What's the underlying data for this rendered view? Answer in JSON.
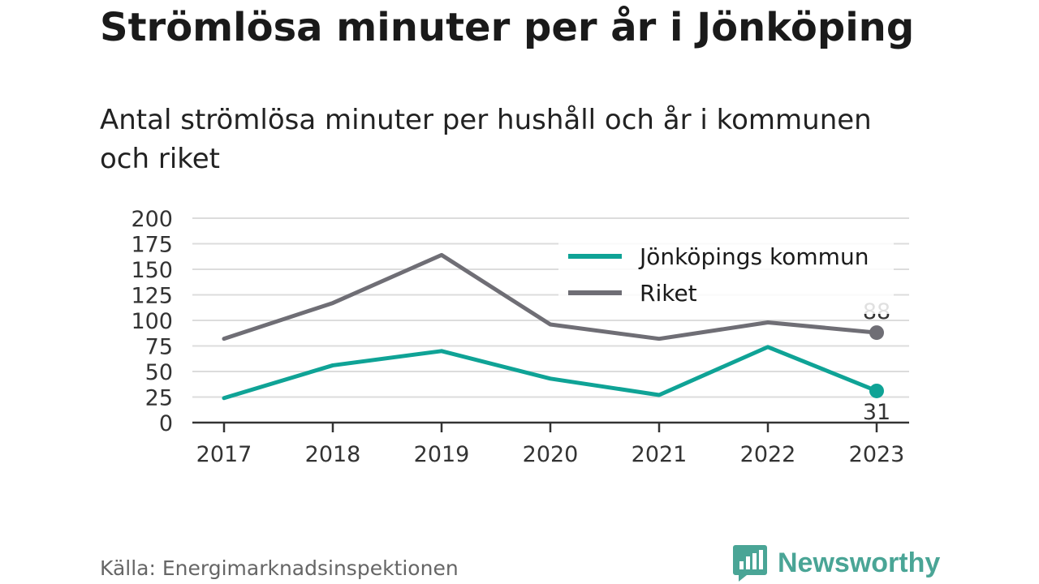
{
  "header": {
    "title": "Strömlösa minuter per år i Jönköping",
    "subtitle": "Antal strömlösa minuter per hushåll och år i kommunen och riket"
  },
  "footer": {
    "source": "Källa: Energimarknadsinspektionen",
    "brand": "Newsworthy",
    "brand_icon": "newsworthy-logo-icon"
  },
  "colors": {
    "kommun": "#0fa396",
    "riket": "#6f6e75",
    "grid": "#dcdcdc",
    "axis": "#333333",
    "brand": "#4aa596"
  },
  "chart_data": {
    "type": "line",
    "x": [
      "2017",
      "2018",
      "2019",
      "2020",
      "2021",
      "2022",
      "2023"
    ],
    "ylim": [
      0,
      200
    ],
    "yticks": [
      0,
      25,
      50,
      75,
      100,
      125,
      150,
      175,
      200
    ],
    "grid": true,
    "legend_position": "top-right",
    "series": [
      {
        "name": "Jönköpings kommun",
        "values": [
          24,
          56,
          70,
          43,
          27,
          74,
          31
        ],
        "end_label": "31"
      },
      {
        "name": "Riket",
        "values": [
          82,
          117,
          164,
          96,
          82,
          98,
          88
        ],
        "end_label": "88"
      }
    ]
  }
}
